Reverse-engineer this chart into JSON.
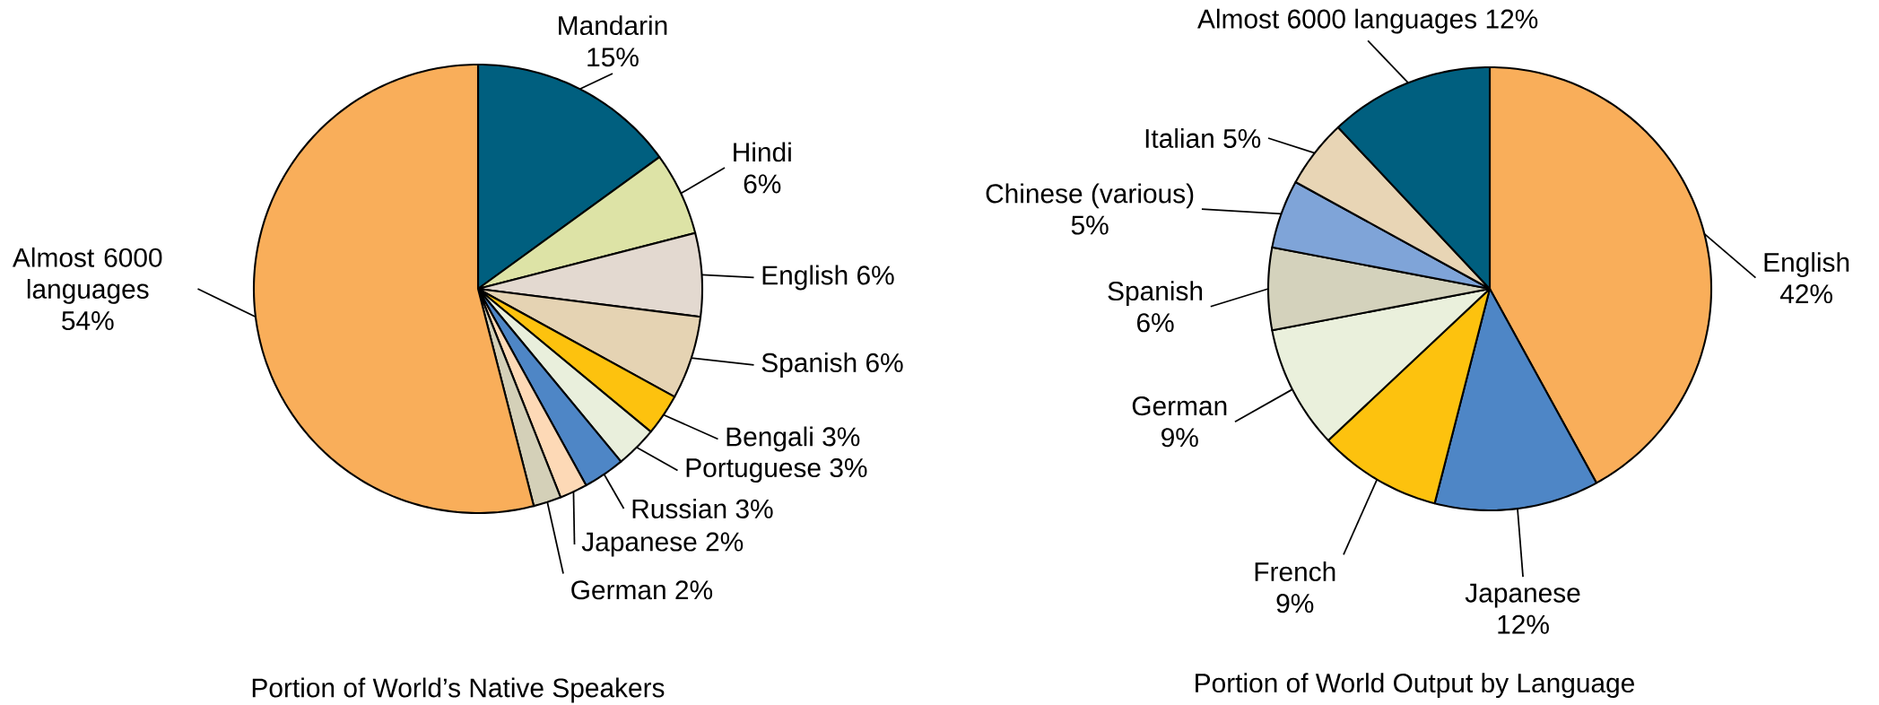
{
  "chart_data": [
    {
      "type": "pie",
      "title": "Portion of World’s Native Speakers",
      "categories": [
        "Mandarin",
        "Hindi",
        "English",
        "Spanish",
        "Bengali",
        "Portuguese",
        "Russian",
        "Japanese",
        "German",
        "Almost 6000 languages"
      ],
      "values": [
        15,
        6,
        6,
        6,
        3,
        3,
        3,
        2,
        2,
        54
      ],
      "value_labels": [
        "15%",
        "6%",
        "6%",
        "6%",
        "3%",
        "3%",
        "3%",
        "2%",
        "2%",
        "54%"
      ],
      "colors": [
        "#005f7f",
        "#dde3a6",
        "#e3d9d0",
        "#e5d3b3",
        "#fdc20e",
        "#e9efdc",
        "#4e86c6",
        "#fdd9b6",
        "#d4d0b8",
        "#f9ae5a"
      ]
    },
    {
      "type": "pie",
      "title": "Portion of World Output by Language",
      "categories": [
        "English",
        "Japanese",
        "French",
        "German",
        "Spanish",
        "Chinese (various)",
        "Italian",
        "Almost 6000 languages"
      ],
      "values": [
        42,
        12,
        9,
        9,
        6,
        5,
        5,
        12
      ],
      "value_labels": [
        "42%",
        "12%",
        "9%",
        "9%",
        "6%",
        "5%",
        "5%",
        "12%"
      ],
      "colors": [
        "#f9ae5a",
        "#4e86c6",
        "#fdc20e",
        "#eaf0dc",
        "#d4d2bc",
        "#7fa4d8",
        "#e8d5b5",
        "#005f7f"
      ]
    }
  ]
}
